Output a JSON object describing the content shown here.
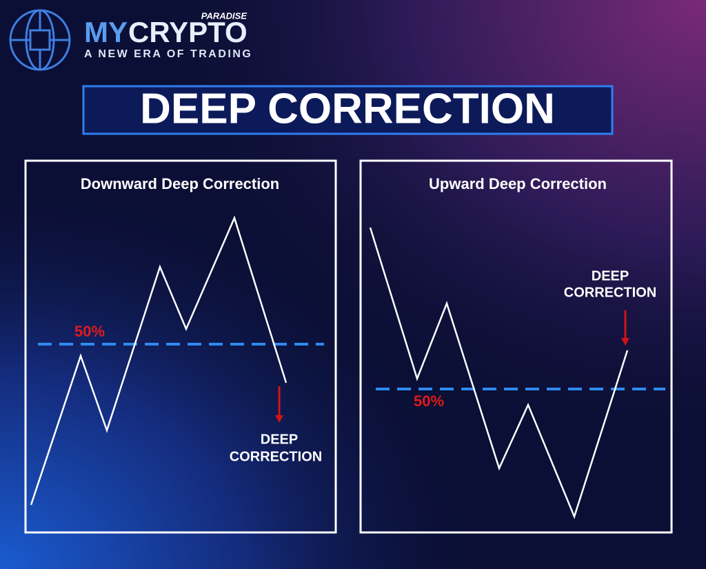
{
  "logo": {
    "brand_prefix": "MY",
    "brand_main": "CRYPTO",
    "brand_tag": "PARADISE",
    "tagline": "A NEW ERA OF TRADING"
  },
  "header": {
    "title": "DEEP CORRECTION"
  },
  "panels": [
    {
      "title": "Downward Deep Correction",
      "level_label": "50%",
      "annotation": [
        "DEEP",
        "CORRECTION"
      ]
    },
    {
      "title": "Upward Deep Correction",
      "level_label": "50%",
      "annotation": [
        "DEEP",
        "CORRECTION"
      ]
    }
  ]
}
